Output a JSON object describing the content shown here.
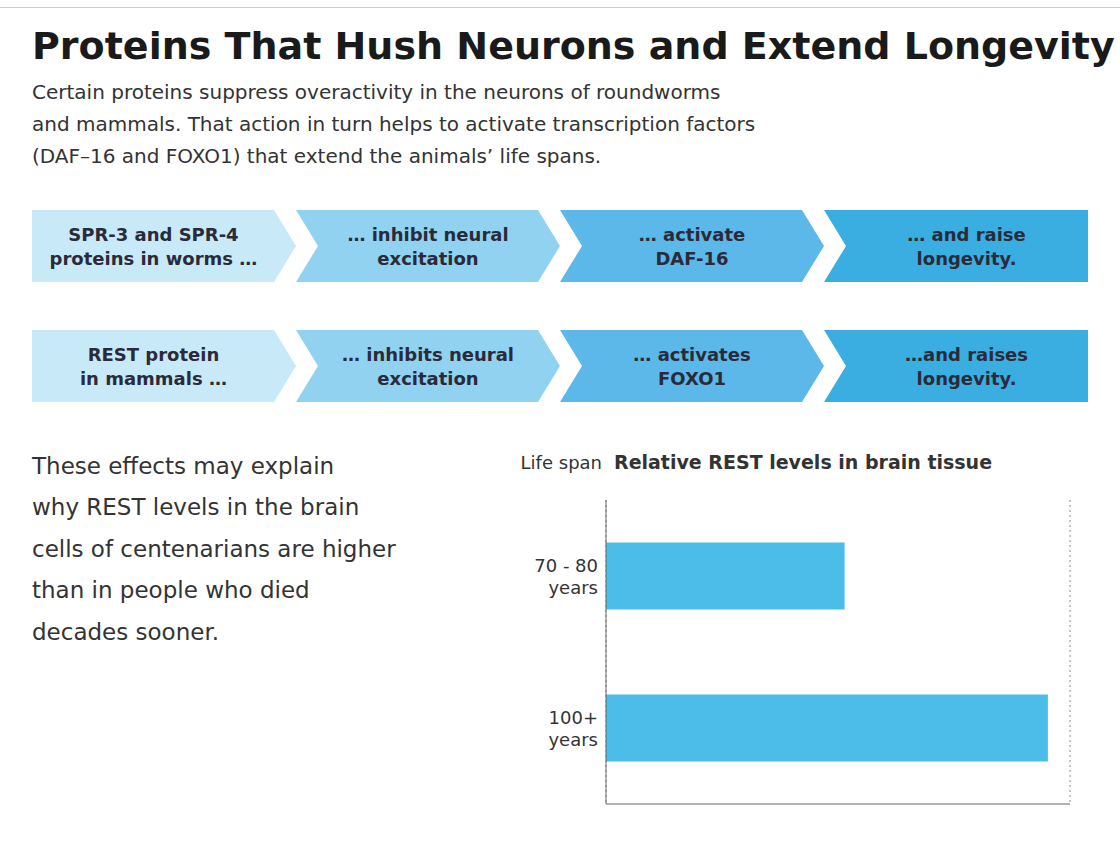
{
  "title": "Proteins That Hush Neurons and Extend Longevity",
  "subtitle": "Certain proteins suppress overactivity in the neurons of roundworms\nand mammals. That action in turn helps to activate transcription factors\n(DAF–16 and FOXO1) that extend the animals’ life spans.",
  "annotations": [
    [
      {
        "text": "SPR-3 and SPR-4\nproteins in worms …",
        "color": "#C8EAF8"
      },
      {
        "text": "… inhibit neural\nexcitation",
        "color": "#90D2F0"
      },
      {
        "text": "… activate\nDAF-16",
        "color": "#5BB8E8"
      },
      {
        "text": "… and raise\nlongevity.",
        "color": "#3AAEE0"
      }
    ],
    [
      {
        "text": "REST protein\nin mammals …",
        "color": "#C8EAF8"
      },
      {
        "text": "… inhibits neural\nexcitation",
        "color": "#90D2F0"
      },
      {
        "text": "… activates\nFOXO1",
        "color": "#5BB8E8"
      },
      {
        "text": "…and raises\nlongevity.",
        "color": "#3AAEE0"
      }
    ],
    "These effects may explain\nwhy REST levels in the brain\ncells of centenarians are higher\nthan in people who died\ndecades sooner."
  ],
  "chart_data": {
    "type": "bar",
    "orientation": "horizontal",
    "title": "Relative REST levels in brain tissue",
    "ylabel": "Life span",
    "categories": [
      "70 - 80\nyears",
      "100+\nyears"
    ],
    "values": [
      0.54,
      1.0
    ],
    "color": "#4BBDE8",
    "xlim": [
      0,
      1.05
    ],
    "xticks": [
      0.1,
      0.2,
      0.3,
      0.4,
      0.5,
      0.6,
      0.7,
      0.8,
      0.9,
      1.0
    ],
    "grid": true,
    "tick_labels": "y"
  }
}
